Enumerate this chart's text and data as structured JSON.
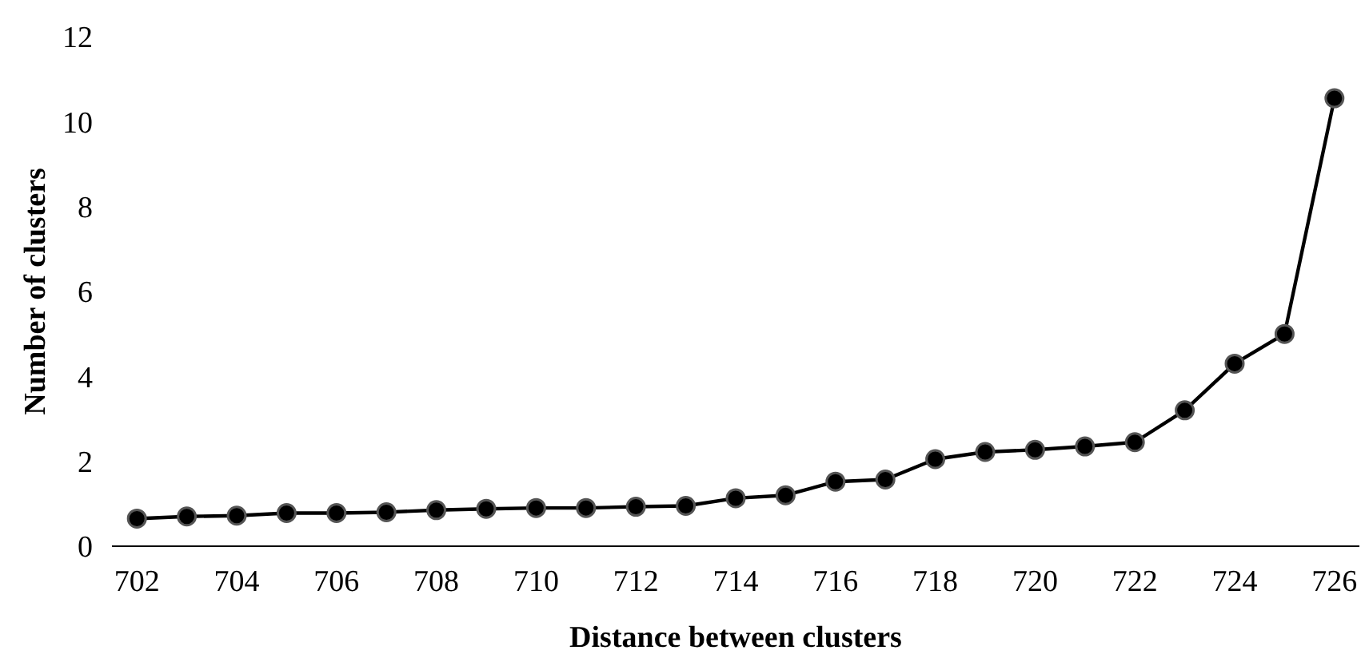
{
  "chart_data": {
    "type": "line",
    "xlabel": "Distance between clusters",
    "ylabel": "Number of clusters",
    "x": [
      702,
      703,
      704,
      705,
      706,
      707,
      708,
      709,
      710,
      711,
      712,
      713,
      714,
      715,
      716,
      717,
      718,
      719,
      720,
      721,
      722,
      723,
      724,
      725,
      726
    ],
    "series": [
      {
        "color": "#000000",
        "values": [
          0.65,
          0.7,
          0.72,
          0.78,
          0.78,
          0.8,
          0.85,
          0.88,
          0.9,
          0.9,
          0.93,
          0.95,
          1.13,
          1.2,
          1.52,
          1.57,
          2.05,
          2.22,
          2.27,
          2.35,
          2.45,
          3.2,
          4.3,
          5.0,
          10.55
        ]
      }
    ],
    "xlim": [
      701.5,
      726.5
    ],
    "xticks": [
      702,
      704,
      706,
      708,
      710,
      712,
      714,
      716,
      718,
      720,
      722,
      724,
      726
    ],
    "ylim": [
      0,
      12
    ],
    "yticks": [
      0,
      2,
      4,
      6,
      8,
      10,
      12
    ],
    "grid": false,
    "marker": "circle",
    "line_style": "solid"
  }
}
